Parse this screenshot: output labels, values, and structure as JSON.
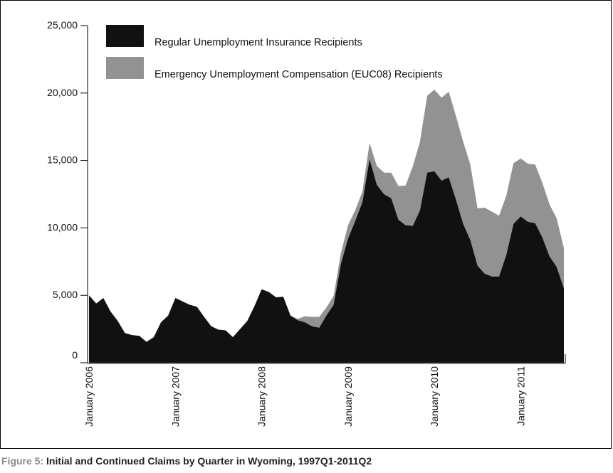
{
  "caption": {
    "prefix": "Figure 5:",
    "text": "Initial and Continued Claims by Quarter in Wyoming, 1997Q1-2011Q2"
  },
  "chart_data": {
    "type": "area",
    "stacked": true,
    "ylim": [
      0,
      25000
    ],
    "yticks": [
      0,
      5000,
      10000,
      15000,
      20000,
      25000
    ],
    "ytick_labels": [
      "0",
      "5,000",
      "10,000",
      "15,000",
      "20,000",
      "25,000"
    ],
    "xticks": [
      0,
      12,
      24,
      36,
      48,
      60
    ],
    "xtick_labels": [
      "January 2006",
      "January 2007",
      "January 2008",
      "January 2009",
      "January 2010",
      "January 2011"
    ],
    "legend_position": "top-left",
    "series": [
      {
        "name": "Regular Unemployment Insurance Recipients",
        "color": "#111111",
        "values": [
          5000,
          4400,
          4800,
          3800,
          3100,
          2200,
          2050,
          2000,
          1550,
          1900,
          3000,
          3500,
          4800,
          4550,
          4300,
          4150,
          3400,
          2700,
          2450,
          2400,
          1900,
          2500,
          3100,
          4200,
          5450,
          5250,
          4850,
          4900,
          3500,
          3150,
          3000,
          2700,
          2600,
          3500,
          4300,
          7300,
          9200,
          10500,
          11900,
          15100,
          13200,
          12500,
          12200,
          10600,
          10200,
          10150,
          11300,
          14100,
          14200,
          13500,
          13750,
          12100,
          10300,
          9100,
          7200,
          6600,
          6400,
          6400,
          8000,
          10300,
          10850,
          10450,
          10350,
          9300,
          7900,
          7100,
          5500
        ]
      },
      {
        "name": "Emergency Unemployment Compensation (EUC08) Recipients",
        "color": "#929292",
        "values": [
          0,
          0,
          0,
          0,
          0,
          0,
          0,
          0,
          0,
          0,
          0,
          0,
          0,
          0,
          0,
          0,
          0,
          0,
          0,
          0,
          0,
          0,
          0,
          0,
          0,
          0,
          0,
          0,
          0,
          100,
          450,
          700,
          800,
          600,
          650,
          800,
          1000,
          800,
          800,
          1200,
          1400,
          1600,
          1900,
          2500,
          2950,
          4400,
          5100,
          5700,
          6050,
          6150,
          6350,
          6200,
          6100,
          5600,
          4250,
          4900,
          4800,
          4500,
          4400,
          4500,
          4300,
          4300,
          4350,
          4050,
          3850,
          3600,
          3000
        ]
      }
    ]
  }
}
